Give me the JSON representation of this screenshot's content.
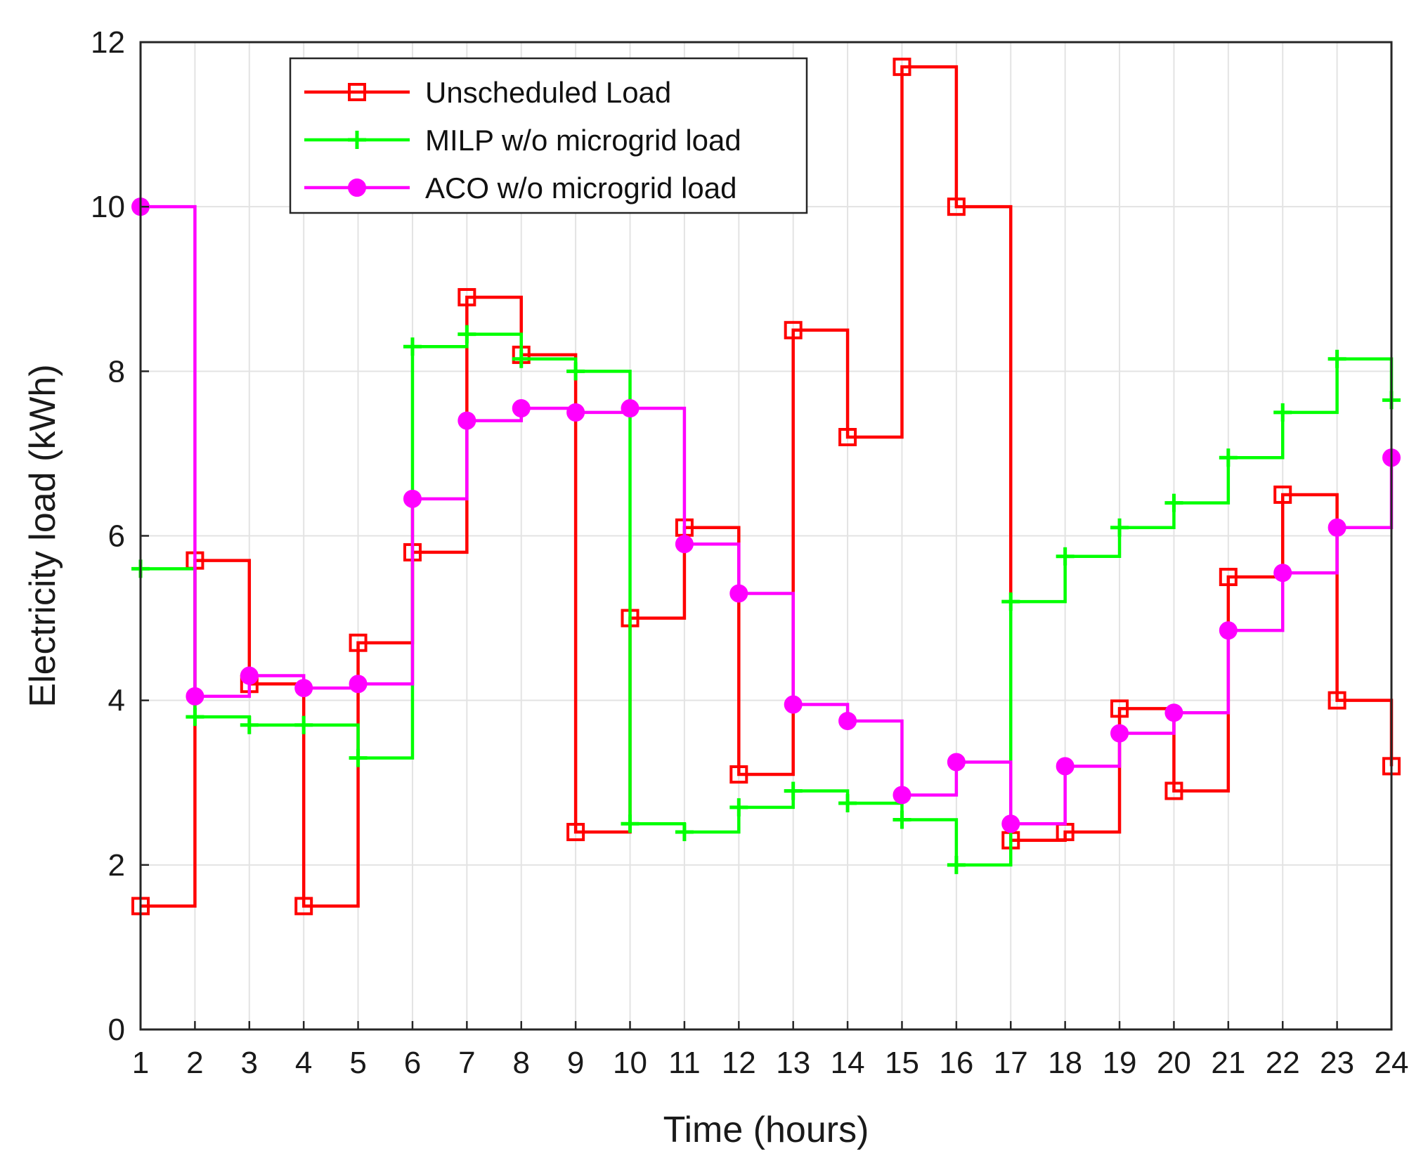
{
  "chart_data": {
    "type": "line",
    "step": "post",
    "title": "",
    "xlabel": "Time (hours)",
    "ylabel": "Electricity load (kWh)",
    "xlim": [
      1,
      24
    ],
    "ylim": [
      0,
      12
    ],
    "xticks": [
      1,
      2,
      3,
      4,
      5,
      6,
      7,
      8,
      9,
      10,
      11,
      12,
      13,
      14,
      15,
      16,
      17,
      18,
      19,
      20,
      21,
      22,
      23,
      24
    ],
    "yticks": [
      0,
      2,
      4,
      6,
      8,
      10,
      12
    ],
    "grid": true,
    "legend_position": "top-left",
    "x": [
      1,
      2,
      3,
      4,
      5,
      6,
      7,
      8,
      9,
      10,
      11,
      12,
      13,
      14,
      15,
      16,
      17,
      18,
      19,
      20,
      21,
      22,
      23,
      24
    ],
    "series": [
      {
        "name": "Unscheduled Load",
        "color": "#ff0000",
        "marker": "square",
        "values": [
          1.5,
          5.7,
          4.2,
          1.5,
          4.7,
          5.8,
          8.9,
          8.2,
          2.4,
          5.0,
          6.1,
          3.1,
          8.5,
          7.2,
          11.7,
          10.0,
          2.3,
          2.4,
          3.9,
          2.9,
          5.5,
          6.5,
          4.0,
          3.2
        ]
      },
      {
        "name": "MILP w/o microgrid load",
        "color": "#00ff00",
        "marker": "plus",
        "values": [
          5.6,
          3.8,
          3.7,
          3.7,
          3.3,
          8.3,
          8.45,
          8.15,
          8.0,
          2.5,
          2.4,
          2.7,
          2.9,
          2.75,
          2.55,
          2.0,
          5.2,
          5.75,
          6.1,
          6.4,
          6.95,
          7.5,
          8.15,
          7.65
        ]
      },
      {
        "name": "ACO w/o microgrid load",
        "color": "#ff00ff",
        "marker": "circle",
        "values": [
          10.0,
          4.05,
          4.3,
          4.15,
          4.2,
          6.45,
          7.4,
          7.55,
          7.5,
          7.55,
          5.9,
          5.3,
          3.95,
          3.75,
          2.85,
          3.25,
          2.5,
          3.2,
          3.6,
          3.85,
          4.85,
          5.55,
          6.1,
          6.95
        ]
      }
    ]
  }
}
